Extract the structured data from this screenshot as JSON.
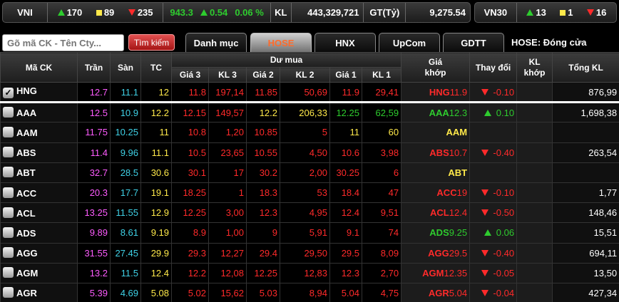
{
  "index_bar": {
    "name": "VNI",
    "advances": "170",
    "unchanged": "89",
    "declines": "235",
    "value": "943.3",
    "change": "0.54",
    "change_pct": "0.06 %",
    "kl_label": "KL",
    "kl_value": "443,329,721",
    "gt_label": "GT(Tỷ)",
    "gt_value": "9,275.54"
  },
  "vn30_bar": {
    "name": "VN30",
    "advances": "13",
    "unchanged": "1",
    "declines": "16"
  },
  "search": {
    "placeholder": "Gõ mã CK - Tên Cty...",
    "button": "Tìm kiếm"
  },
  "tabs": [
    "Danh mục",
    "HOSE",
    "HNX",
    "UpCom",
    "GDTT"
  ],
  "active_tab": "HOSE",
  "market_status": "HOSE:  Đóng cửa",
  "headers": {
    "symbol": "Mã CK",
    "ceiling": "Trần",
    "floor": "Sàn",
    "ref": "TC",
    "bid_group": "Dư mua",
    "g3": "Giá 3",
    "kl3": "KL 3",
    "g2": "Giá 2",
    "kl2": "KL 2",
    "g1": "Giá 1",
    "kl1": "KL 1",
    "match_price": "Giá khớp",
    "change": "Thay đổi",
    "match_vol": "KL khớp",
    "total_vol": "Tổng KL"
  },
  "colors": {
    "up": "#2ecc2e",
    "down": "#ff2a2a",
    "ref": "#ffe94a",
    "ceiling": "#ff5cff",
    "floor": "#3fd1e6"
  },
  "rows": [
    {
      "sym": "HNG",
      "checked": true,
      "tran": "12.7",
      "san": "11.1",
      "tc": "12",
      "g3": "11.8",
      "kl3": "197,14",
      "g2": "11.85",
      "kl2": "50,69",
      "g1": "11.9",
      "kl1": "29,41",
      "msym": "HNG",
      "mp": "11.9",
      "chg": "-0.10",
      "dir": "dn",
      "klk": "",
      "tkl": "876,99"
    },
    {
      "sym": "AAA",
      "checked": false,
      "tran": "12.5",
      "san": "10.9",
      "tc": "12.2",
      "g3": "12.15",
      "kl3": "149,57",
      "g2": "12.2",
      "kl2": "206,33",
      "g1": "12.25",
      "kl1": "62,59",
      "msym": "AAA",
      "mp": "12.3",
      "chg": "0.10",
      "dir": "up",
      "klk": "",
      "tkl": "1,698,38"
    },
    {
      "sym": "AAM",
      "checked": false,
      "tran": "11.75",
      "san": "10.25",
      "tc": "11",
      "g3": "10.8",
      "kl3": "1,20",
      "g2": "10.85",
      "kl2": "5",
      "g1": "11",
      "kl1": "60",
      "msym": "AAM",
      "mp": "",
      "chg": "",
      "dir": "ref",
      "klk": "",
      "tkl": ""
    },
    {
      "sym": "ABS",
      "checked": false,
      "tran": "11.4",
      "san": "9.96",
      "tc": "11.1",
      "g3": "10.5",
      "kl3": "23,65",
      "g2": "10.55",
      "kl2": "4,50",
      "g1": "10.6",
      "kl1": "3,98",
      "msym": "ABS",
      "mp": "10.7",
      "chg": "-0.40",
      "dir": "dn",
      "klk": "",
      "tkl": "263,54"
    },
    {
      "sym": "ABT",
      "checked": false,
      "tran": "32.7",
      "san": "28.5",
      "tc": "30.6",
      "g3": "30.1",
      "kl3": "17",
      "g2": "30.2",
      "kl2": "2,00",
      "g1": "30.25",
      "kl1": "6",
      "msym": "ABT",
      "mp": "",
      "chg": "",
      "dir": "ref",
      "klk": "",
      "tkl": ""
    },
    {
      "sym": "ACC",
      "checked": false,
      "tran": "20.3",
      "san": "17.7",
      "tc": "19.1",
      "g3": "18.25",
      "kl3": "1",
      "g2": "18.3",
      "kl2": "53",
      "g1": "18.4",
      "kl1": "47",
      "msym": "ACC",
      "mp": "19",
      "chg": "-0.10",
      "dir": "dn",
      "klk": "",
      "tkl": "1,77"
    },
    {
      "sym": "ACL",
      "checked": false,
      "tran": "13.25",
      "san": "11.55",
      "tc": "12.9",
      "g3": "12.25",
      "kl3": "3,00",
      "g2": "12.3",
      "kl2": "4,95",
      "g1": "12.4",
      "kl1": "9,51",
      "msym": "ACL",
      "mp": "12.4",
      "chg": "-0.50",
      "dir": "dn",
      "klk": "",
      "tkl": "148,46"
    },
    {
      "sym": "ADS",
      "checked": false,
      "tran": "9.89",
      "san": "8.61",
      "tc": "9.19",
      "g3": "8.9",
      "kl3": "1,00",
      "g2": "9",
      "kl2": "5,91",
      "g1": "9.1",
      "kl1": "74",
      "msym": "ADS",
      "mp": "9.25",
      "chg": "0.06",
      "dir": "up",
      "klk": "",
      "tkl": "15,51"
    },
    {
      "sym": "AGG",
      "checked": false,
      "tran": "31.55",
      "san": "27.45",
      "tc": "29.9",
      "g3": "29.3",
      "kl3": "12,27",
      "g2": "29.4",
      "kl2": "29,50",
      "g1": "29.5",
      "kl1": "8,09",
      "msym": "AGG",
      "mp": "29.5",
      "chg": "-0.40",
      "dir": "dn",
      "klk": "",
      "tkl": "694,11"
    },
    {
      "sym": "AGM",
      "checked": false,
      "tran": "13.2",
      "san": "11.5",
      "tc": "12.4",
      "g3": "12.2",
      "kl3": "12,08",
      "g2": "12.25",
      "kl2": "12,83",
      "g1": "12.3",
      "kl1": "2,70",
      "msym": "AGM",
      "mp": "12.35",
      "chg": "-0.05",
      "dir": "dn",
      "klk": "",
      "tkl": "13,50"
    },
    {
      "sym": "AGR",
      "checked": false,
      "tran": "5.39",
      "san": "4.69",
      "tc": "5.08",
      "g3": "5.02",
      "kl3": "15,62",
      "g2": "5.03",
      "kl2": "8,94",
      "g1": "5.04",
      "kl1": "4,75",
      "msym": "AGR",
      "mp": "5.04",
      "chg": "-0.04",
      "dir": "dn",
      "klk": "",
      "tkl": "427,34"
    }
  ]
}
